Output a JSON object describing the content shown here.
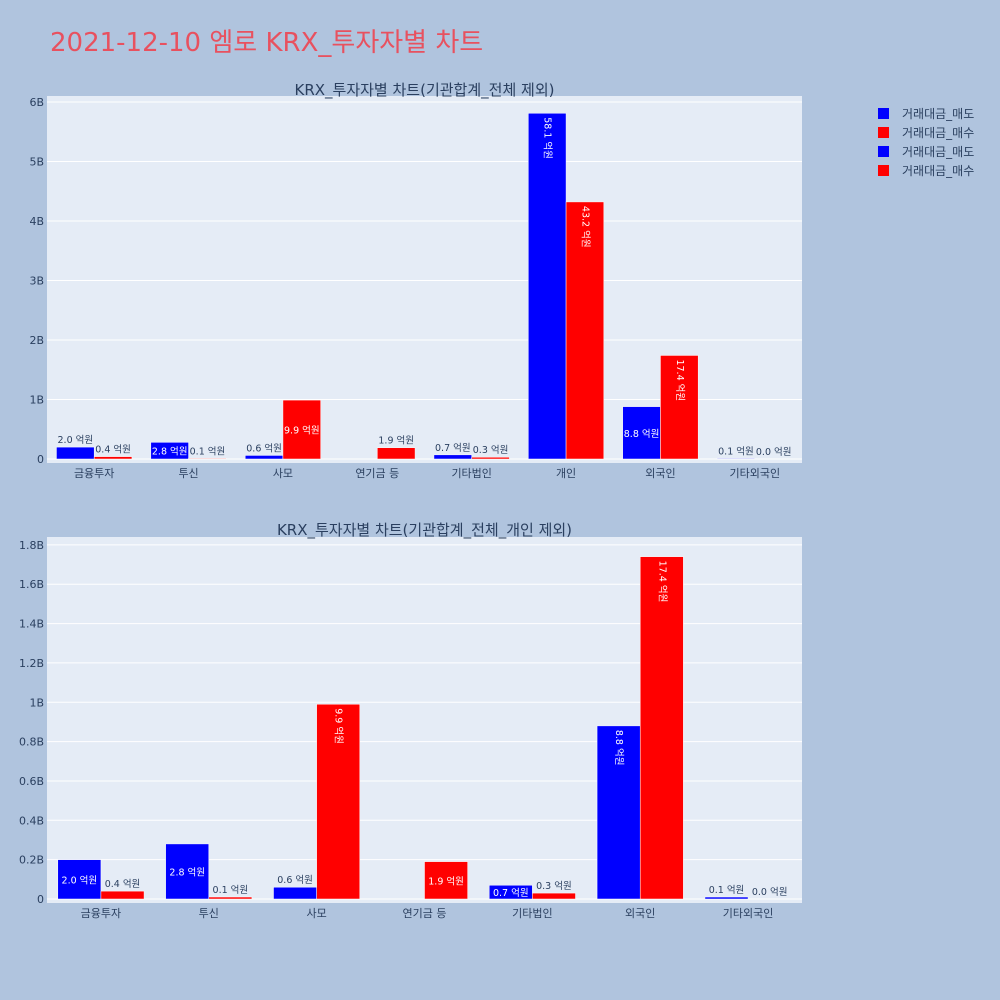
{
  "page_title": "2021-12-10 엠로 KRX_투자자별 차트",
  "legend": {
    "items": [
      {
        "label": "거래대금_매도",
        "color": "#0000ff"
      },
      {
        "label": "거래대금_매수",
        "color": "#ff0000"
      },
      {
        "label": "거래대금_매도",
        "color": "#0000ff"
      },
      {
        "label": "거래대금_매수",
        "color": "#ff0000"
      }
    ]
  },
  "chart_data": [
    {
      "type": "bar",
      "title": "KRX_투자자별 차트(기관합계_전체 제외)",
      "categories": [
        "금융투자",
        "투신",
        "사모",
        "연기금 등",
        "기타법인",
        "개인",
        "외국인",
        "기타외국인"
      ],
      "series": [
        {
          "name": "거래대금_매도",
          "color": "#0000ff",
          "values": [
            200000000,
            280000000,
            60000000,
            0,
            70000000,
            5810000000,
            880000000,
            10000000
          ],
          "labels": [
            "2.0 억원",
            "2.8 억원",
            "0.6 억원",
            "",
            "0.7 억원",
            "58.1 억원",
            "8.8 억원",
            "0.1 억원"
          ]
        },
        {
          "name": "거래대금_매수",
          "color": "#ff0000",
          "values": [
            40000000,
            10000000,
            990000000,
            190000000,
            30000000,
            4320000000,
            1740000000,
            0
          ],
          "labels": [
            "0.4 억원",
            "0.1 억원",
            "9.9 억원",
            "1.9 억원",
            "0.3 억원",
            "43.2 억원",
            "17.4 억원",
            "0.0 억원"
          ]
        }
      ],
      "ylim": [
        0,
        6100000000
      ],
      "yticks": [
        0,
        1000000000,
        2000000000,
        3000000000,
        4000000000,
        5000000000,
        6000000000
      ],
      "ytick_labels": [
        "0",
        "1B",
        "2B",
        "3B",
        "4B",
        "5B",
        "6B"
      ]
    },
    {
      "type": "bar",
      "title": "KRX_투자자별 차트(기관합계_전체_개인 제외)",
      "categories": [
        "금융투자",
        "투신",
        "사모",
        "연기금 등",
        "기타법인",
        "외국인",
        "기타외국인"
      ],
      "series": [
        {
          "name": "거래대금_매도",
          "color": "#0000ff",
          "values": [
            200000000,
            280000000,
            60000000,
            0,
            70000000,
            880000000,
            10000000
          ],
          "labels": [
            "2.0 억원",
            "2.8 억원",
            "0.6 억원",
            "",
            "0.7 억원",
            "8.8 억원",
            "0.1 억원"
          ]
        },
        {
          "name": "거래대금_매수",
          "color": "#ff0000",
          "values": [
            40000000,
            10000000,
            990000000,
            190000000,
            30000000,
            1740000000,
            0
          ],
          "labels": [
            "0.4 억원",
            "0.1 억원",
            "9.9 억원",
            "1.9 억원",
            "0.3 억원",
            "17.4 억원",
            "0.0 억원"
          ]
        }
      ],
      "ylim": [
        0,
        1840000000
      ],
      "yticks": [
        0,
        200000000,
        400000000,
        600000000,
        800000000,
        1000000000,
        1200000000,
        1400000000,
        1600000000,
        1800000000
      ],
      "ytick_labels": [
        "0",
        "0.2B",
        "0.4B",
        "0.6B",
        "0.8B",
        "1B",
        "1.2B",
        "1.4B",
        "1.6B",
        "1.8B"
      ]
    }
  ]
}
